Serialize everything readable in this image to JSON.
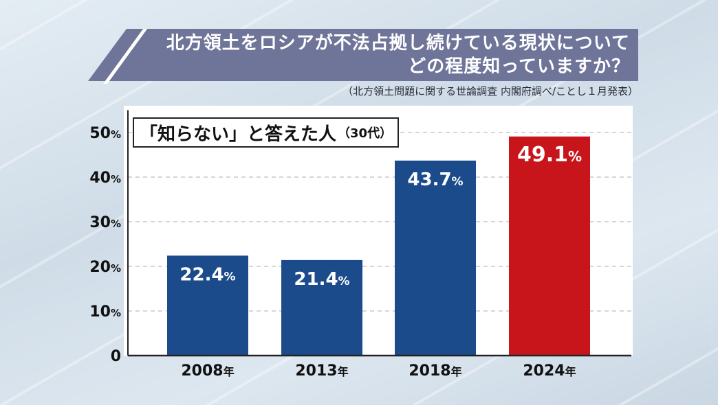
{
  "title": {
    "line1": "北方領土をロシアが不法占拠し続けている現状について",
    "line2": "どの程度知っていますか？"
  },
  "source": "（北方領土問題に関する世論調査 内閣府調べ/ことし１月発表）",
  "colors": {
    "banner": "#6f7499",
    "bar_blue": "#1c4b8c",
    "bar_red": "#c8151c",
    "grid": "#c8c8c8"
  },
  "chart_data": {
    "type": "bar",
    "legend_main": "「知らない」と答えた人",
    "legend_sub": "（30代）",
    "categories": [
      "2008年",
      "2013年",
      "2018年",
      "2024年"
    ],
    "values": [
      22.4,
      21.4,
      43.7,
      49.1
    ],
    "value_labels": [
      "22.4%",
      "21.4%",
      "43.7%",
      "49.1%"
    ],
    "highlight_index": 3,
    "ylim": [
      0,
      55
    ],
    "yticks": [
      0,
      10,
      20,
      30,
      40,
      50
    ],
    "ytick_labels": [
      "0",
      "10%",
      "20%",
      "30%",
      "40%",
      "50%"
    ],
    "grid": true
  }
}
